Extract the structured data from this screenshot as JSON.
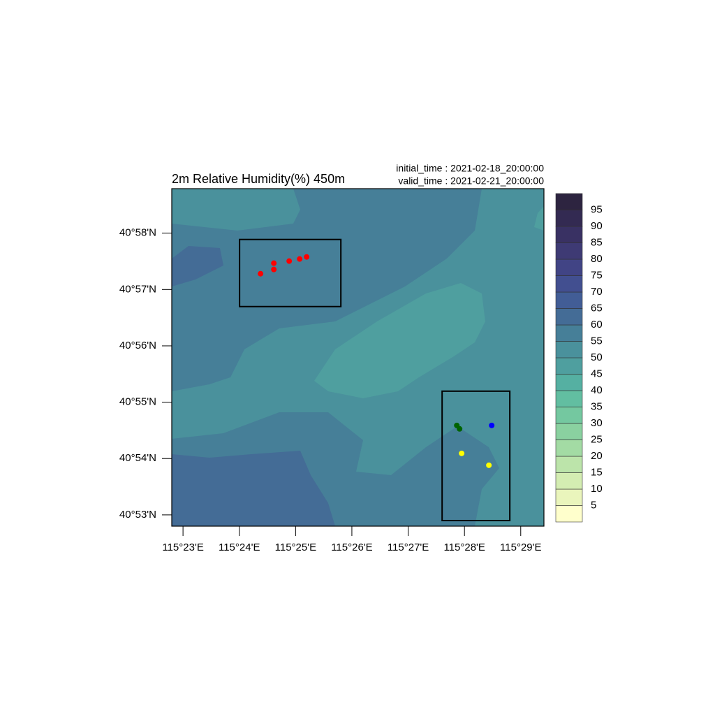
{
  "chart_data": {
    "type": "contour",
    "title": "2m Relative Humidity(%) 450m",
    "initial_time": "initial_time :  2021-02-18_20:00:00",
    "valid_time": "valid_time  :  2021-02-21_20:00:00",
    "xlim": [
      115.38,
      115.4902
    ],
    "ylim": [
      40.88,
      40.97983
    ],
    "xticks": [
      {
        "value": 115.38333,
        "label": "115°23'E"
      },
      {
        "value": 115.4,
        "label": "115°24'E"
      },
      {
        "value": 115.41667,
        "label": "115°25'E"
      },
      {
        "value": 115.43333,
        "label": "115°26'E"
      },
      {
        "value": 115.45,
        "label": "115°27'E"
      },
      {
        "value": 115.46667,
        "label": "115°28'E"
      },
      {
        "value": 115.48333,
        "label": "115°29'E"
      }
    ],
    "yticks": [
      {
        "value": 40.88333,
        "label": "40°53'N"
      },
      {
        "value": 40.9,
        "label": "40°54'N"
      },
      {
        "value": 40.91667,
        "label": "40°55'N"
      },
      {
        "value": 40.93333,
        "label": "40°56'N"
      },
      {
        "value": 40.95,
        "label": "40°57'N"
      },
      {
        "value": 40.96667,
        "label": "40°58'N"
      }
    ],
    "levels": [
      5,
      10,
      15,
      20,
      25,
      30,
      35,
      40,
      45,
      50,
      55,
      60,
      65,
      70,
      75,
      80,
      85,
      90,
      95
    ],
    "colors": [
      "#ffffcc",
      "#eaf5bc",
      "#d4edb2",
      "#bce4aa",
      "#a3dba4",
      "#8ad1a0",
      "#74c8a0",
      "#62bea1",
      "#55b0a2",
      "#4f9f9f",
      "#4a919c",
      "#467f98",
      "#446c96",
      "#425d96",
      "#424f90",
      "#414485",
      "#3e3a74",
      "#393163",
      "#332a52",
      "#2d2440"
    ],
    "regions": [
      {
        "lon": [
          115.40008,
          115.43007
        ],
        "lat": [
          40.94495,
          40.9648
        ]
      },
      {
        "lon": [
          115.46005,
          115.4801
        ],
        "lat": [
          40.88165,
          40.91993
        ]
      }
    ],
    "markers": [
      {
        "color": "#ff0000",
        "lon": [
          115.40628,
          115.41022,
          115.41022,
          115.41477,
          115.41787,
          115.41993
        ],
        "lat": [
          40.95467,
          40.95592,
          40.95778,
          40.9584,
          40.95902,
          40.95963
        ]
      },
      {
        "color": "#006400",
        "lon": [
          115.4644,
          115.46522
        ],
        "lat": [
          40.9098,
          40.90877
        ]
      },
      {
        "color": "#0000ff",
        "lon": [
          115.47473
        ],
        "lat": [
          40.9098
        ]
      },
      {
        "color": "#ffff00",
        "lon": [
          115.46583,
          115.4739
        ],
        "lat": [
          40.90153,
          40.89802
        ]
      }
    ]
  }
}
